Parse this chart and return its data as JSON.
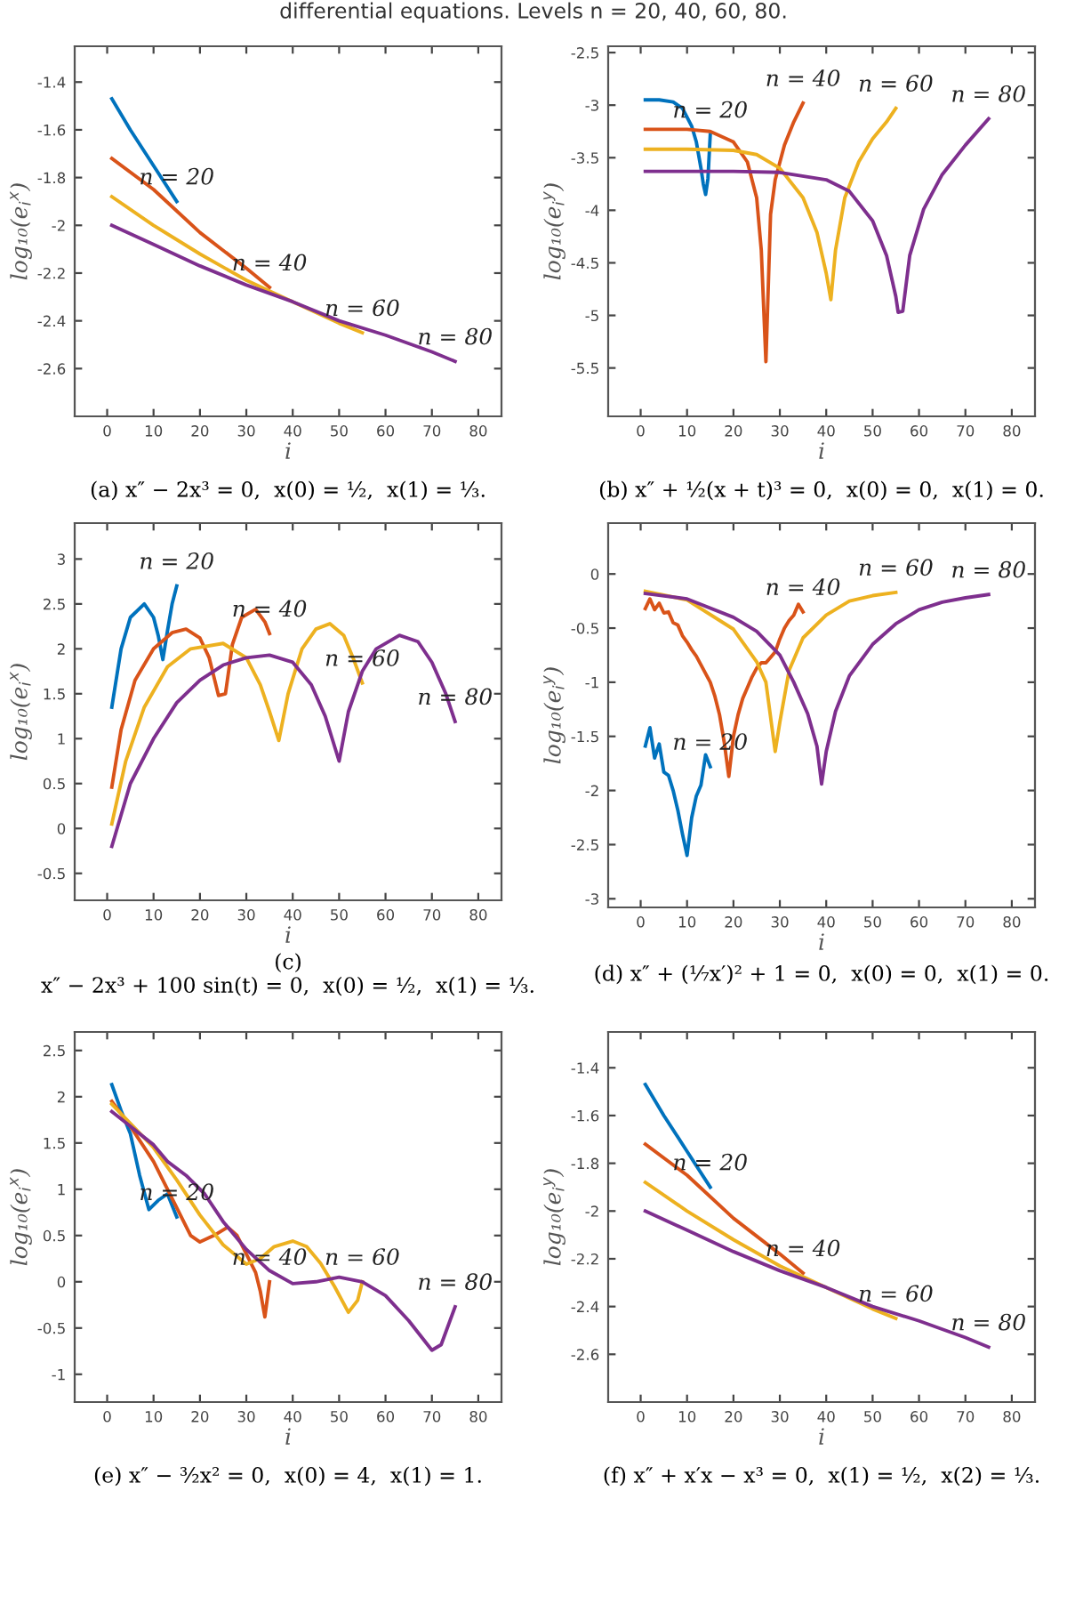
{
  "chart_data": [
    {
      "type": "line",
      "title": "differential equations. Levels n = 20, 40, 60, 80.",
      "xlabel": "i",
      "ylabel": "log₁₀(e$_{i}$$^{x}$)",
      "xlim": [
        -7,
        85
      ],
      "ylim": [
        -2.8,
        -1.25
      ],
      "xticks": [
        0,
        10,
        20,
        30,
        40,
        50,
        60,
        70,
        80
      ],
      "yticks": [
        -2.6,
        -2.4,
        -2.2,
        -2,
        -1.8,
        -1.6,
        -1.4
      ],
      "series": [
        {
          "name": "n = 20",
          "color": "#0072bd",
          "x": [
            1,
            5,
            10,
            15
          ],
          "values": [
            -1.47,
            -1.6,
            -1.75,
            -1.9
          ]
        },
        {
          "name": "n = 40",
          "color": "#d95319",
          "x": [
            1,
            10,
            20,
            30,
            35
          ],
          "values": [
            -1.72,
            -1.85,
            -2.03,
            -2.18,
            -2.26
          ]
        },
        {
          "name": "n = 60",
          "color": "#edb120",
          "x": [
            1,
            10,
            20,
            30,
            40,
            50,
            55
          ],
          "values": [
            -1.88,
            -2.0,
            -2.12,
            -2.23,
            -2.32,
            -2.41,
            -2.45
          ]
        },
        {
          "name": "n = 80",
          "color": "#7e2f8e",
          "x": [
            1,
            10,
            20,
            30,
            40,
            50,
            60,
            70,
            75
          ],
          "values": [
            -2.0,
            -2.08,
            -2.17,
            -2.25,
            -2.32,
            -2.4,
            -2.46,
            -2.53,
            -2.57
          ]
        }
      ],
      "annotations": [
        "(a) x″ − 2x³ = 0,  x(0) = ½,  x(1) = ⅓."
      ]
    },
    {
      "type": "line",
      "xlabel": "i",
      "ylabel": "log₁₀(e$_{i}$$^{y}$)",
      "xlim": [
        -7,
        85
      ],
      "ylim": [
        -5.96,
        -2.44
      ],
      "xticks": [
        0,
        10,
        20,
        30,
        40,
        50,
        60,
        70,
        80
      ],
      "yticks": [
        -5.5,
        -5,
        -4.5,
        -4,
        -3.5,
        -3,
        -2.5
      ],
      "series": [
        {
          "name": "n = 20",
          "color": "#0072bd",
          "x": [
            1,
            4,
            7,
            9,
            11,
            12,
            13,
            13.5,
            14,
            14.5,
            15
          ],
          "values": [
            -2.95,
            -2.95,
            -2.97,
            -3.03,
            -3.2,
            -3.35,
            -3.6,
            -3.75,
            -3.85,
            -3.7,
            -3.28
          ]
        },
        {
          "name": "n = 40",
          "color": "#d95319",
          "x": [
            1,
            10,
            15,
            20,
            23,
            25,
            26,
            27,
            28,
            29,
            31,
            33,
            35
          ],
          "values": [
            -3.23,
            -3.23,
            -3.25,
            -3.35,
            -3.54,
            -3.88,
            -4.38,
            -5.44,
            -4.04,
            -3.71,
            -3.38,
            -3.16,
            -2.98
          ]
        },
        {
          "name": "n = 60",
          "color": "#edb120",
          "x": [
            1,
            10,
            20,
            25,
            30,
            35,
            38,
            40,
            41,
            42,
            44,
            47,
            50,
            53,
            55
          ],
          "values": [
            -3.42,
            -3.42,
            -3.43,
            -3.47,
            -3.6,
            -3.88,
            -4.21,
            -4.6,
            -4.85,
            -4.38,
            -3.88,
            -3.54,
            -3.32,
            -3.16,
            -3.03
          ]
        },
        {
          "name": "n = 80",
          "color": "#7e2f8e",
          "x": [
            1,
            20,
            30,
            40,
            45,
            50,
            53,
            55,
            55.5,
            56.5,
            58,
            61,
            65,
            70,
            75
          ],
          "values": [
            -3.63,
            -3.63,
            -3.64,
            -3.71,
            -3.82,
            -4.1,
            -4.43,
            -4.82,
            -4.97,
            -4.96,
            -4.43,
            -3.99,
            -3.66,
            -3.38,
            -3.13
          ]
        }
      ],
      "annotations": [
        "(b) x″ + ½(x + t)³ = 0,  x(0) = 0,  x(1) = 0."
      ]
    },
    {
      "type": "line",
      "xlabel": "i",
      "ylabel": "log₁₀(e$_{i}$$^{x}$)",
      "xlim": [
        -7,
        85
      ],
      "ylim": [
        -0.8,
        3.4
      ],
      "xticks": [
        0,
        10,
        20,
        30,
        40,
        50,
        60,
        70,
        80
      ],
      "yticks": [
        -0.5,
        0,
        0.5,
        1,
        1.5,
        2,
        2.5,
        3
      ],
      "series": [
        {
          "name": "n = 20",
          "color": "#0072bd",
          "x": [
            1,
            3,
            5,
            8,
            10,
            11,
            12,
            13,
            14,
            15
          ],
          "values": [
            1.35,
            2.0,
            2.35,
            2.5,
            2.35,
            2.15,
            1.88,
            2.2,
            2.5,
            2.7
          ]
        },
        {
          "name": "n = 40",
          "color": "#d95319",
          "x": [
            1,
            3,
            6,
            10,
            14,
            17,
            20,
            22,
            24,
            25.5,
            27,
            29,
            32,
            34,
            35
          ],
          "values": [
            0.46,
            1.1,
            1.65,
            2.0,
            2.18,
            2.22,
            2.12,
            1.9,
            1.48,
            1.5,
            2.05,
            2.35,
            2.44,
            2.3,
            2.17
          ]
        },
        {
          "name": "n = 60",
          "color": "#edb120",
          "x": [
            1,
            4,
            8,
            13,
            18,
            25,
            30,
            33,
            35,
            37,
            39,
            42,
            45,
            48,
            51,
            53,
            55
          ],
          "values": [
            0.05,
            0.75,
            1.35,
            1.8,
            2.0,
            2.06,
            1.9,
            1.6,
            1.3,
            0.98,
            1.5,
            2.0,
            2.22,
            2.28,
            2.15,
            1.9,
            1.62
          ]
        },
        {
          "name": "n = 80",
          "color": "#7e2f8e",
          "x": [
            1,
            5,
            10,
            15,
            20,
            25,
            30,
            35,
            40,
            44,
            47,
            50,
            52,
            55,
            58,
            63,
            67,
            70,
            73,
            75
          ],
          "values": [
            -0.2,
            0.5,
            1.0,
            1.4,
            1.65,
            1.82,
            1.9,
            1.93,
            1.85,
            1.6,
            1.25,
            0.75,
            1.3,
            1.75,
            2.0,
            2.15,
            2.08,
            1.85,
            1.5,
            1.19
          ]
        }
      ],
      "annotations": [
        "(c)\nx″ − 2x³ + 100 sin(t) = 0,  x(0) = ½,  x(1) = ⅓."
      ]
    },
    {
      "type": "line",
      "xlabel": "i",
      "ylabel": "log₁₀(e$_{i}$$^{y}$)",
      "xlim": [
        -7,
        85
      ],
      "ylim": [
        -3.08,
        0.47
      ],
      "xticks": [
        0,
        10,
        20,
        30,
        40,
        50,
        60,
        70,
        80
      ],
      "yticks": [
        -3,
        -2.5,
        -2,
        -1.5,
        -1,
        -0.5,
        0
      ],
      "series": [
        {
          "name": "n = 20",
          "color": "#0072bd",
          "x": [
            1,
            2,
            3,
            4,
            5,
            6,
            7,
            8,
            9,
            10,
            11,
            12,
            13,
            14,
            15
          ],
          "values": [
            -1.59,
            -1.42,
            -1.7,
            -1.57,
            -1.83,
            -1.86,
            -2.0,
            -2.18,
            -2.4,
            -2.6,
            -2.25,
            -2.05,
            -1.95,
            -1.67,
            -1.78
          ]
        },
        {
          "name": "n = 40",
          "color": "#d95319",
          "x": [
            1,
            2,
            3,
            4,
            5,
            6,
            7,
            8,
            9,
            10,
            11,
            12,
            13,
            14,
            15,
            16,
            17,
            18,
            19,
            20,
            21,
            22,
            23,
            24,
            25,
            26,
            27,
            28,
            29,
            30,
            31,
            32,
            33,
            34,
            35
          ],
          "values": [
            -0.32,
            -0.23,
            -0.33,
            -0.27,
            -0.36,
            -0.35,
            -0.45,
            -0.47,
            -0.57,
            -0.63,
            -0.7,
            -0.76,
            -0.84,
            -0.92,
            -1.0,
            -1.13,
            -1.3,
            -1.55,
            -1.87,
            -1.5,
            -1.3,
            -1.15,
            -1.05,
            -0.95,
            -0.87,
            -0.82,
            -0.82,
            -0.77,
            -0.72,
            -0.6,
            -0.5,
            -0.43,
            -0.38,
            -0.28,
            -0.35
          ]
        },
        {
          "name": "n = 60",
          "color": "#edb120",
          "x": [
            1,
            10,
            20,
            25,
            27,
            29,
            30,
            32,
            35,
            40,
            45,
            50,
            55
          ],
          "values": [
            -0.16,
            -0.24,
            -0.51,
            -0.81,
            -1.0,
            -1.64,
            -1.37,
            -0.89,
            -0.59,
            -0.38,
            -0.25,
            -0.2,
            -0.17
          ]
        },
        {
          "name": "n = 80",
          "color": "#7e2f8e",
          "x": [
            1,
            10,
            20,
            25,
            30,
            33,
            36,
            38,
            39,
            40,
            42,
            45,
            50,
            55,
            60,
            65,
            70,
            75
          ],
          "values": [
            -0.18,
            -0.23,
            -0.4,
            -0.53,
            -0.75,
            -1.0,
            -1.29,
            -1.59,
            -1.94,
            -1.64,
            -1.27,
            -0.94,
            -0.65,
            -0.46,
            -0.33,
            -0.26,
            -0.22,
            -0.19
          ]
        }
      ],
      "annotations": [
        "(d) x″ + (¹⁄₇x′)² + 1 = 0,  x(0) = 0,  x(1) = 0."
      ]
    },
    {
      "type": "line",
      "xlabel": "i",
      "ylabel": "log₁₀(e$_{i}$$^{x}$)",
      "xlim": [
        -7,
        85
      ],
      "ylim": [
        -1.3,
        2.7
      ],
      "xticks": [
        0,
        10,
        20,
        30,
        40,
        50,
        60,
        70,
        80
      ],
      "yticks": [
        -1,
        -0.5,
        0,
        0.5,
        1,
        1.5,
        2,
        2.5
      ],
      "series": [
        {
          "name": "n = 20",
          "color": "#0072bd",
          "x": [
            1,
            3,
            5,
            7,
            9,
            11,
            13,
            15
          ],
          "values": [
            2.13,
            1.85,
            1.6,
            1.15,
            0.78,
            0.88,
            0.95,
            0.7
          ]
        },
        {
          "name": "n = 40",
          "color": "#d95319",
          "x": [
            1,
            5,
            10,
            15,
            18,
            20,
            23,
            26,
            28,
            30,
            32,
            33,
            34,
            35
          ],
          "values": [
            1.95,
            1.68,
            1.3,
            0.8,
            0.5,
            0.43,
            0.5,
            0.59,
            0.5,
            0.3,
            0.1,
            -0.1,
            -0.38,
            0
          ]
        },
        {
          "name": "n = 60",
          "color": "#edb120",
          "x": [
            1,
            10,
            15,
            20,
            25,
            30,
            33,
            36,
            40,
            43,
            46,
            49,
            52,
            54,
            55
          ],
          "values": [
            1.92,
            1.45,
            1.1,
            0.72,
            0.4,
            0.19,
            0.25,
            0.38,
            0.44,
            0.38,
            0.2,
            -0.05,
            -0.33,
            -0.2,
            0
          ]
        },
        {
          "name": "n = 80",
          "color": "#7e2f8e",
          "x": [
            1,
            5,
            10,
            13,
            17,
            21,
            25,
            30,
            35,
            40,
            45,
            50,
            55,
            60,
            65,
            70,
            72,
            75
          ],
          "values": [
            1.84,
            1.68,
            1.48,
            1.3,
            1.15,
            0.95,
            0.65,
            0.35,
            0.12,
            -0.02,
            0,
            0.05,
            0,
            -0.15,
            -0.42,
            -0.74,
            -0.68,
            -0.27
          ]
        }
      ],
      "annotations": [
        "(e) x″ − ³⁄₂x² = 0,  x(0) = 4,  x(1) = 1."
      ]
    },
    {
      "type": "line",
      "xlabel": "i",
      "ylabel": "log₁₀(e$_{i}$$^{y}$)",
      "xlim": [
        -7,
        85
      ],
      "ylim": [
        -2.8,
        -1.25
      ],
      "xticks": [
        0,
        10,
        20,
        30,
        40,
        50,
        60,
        70,
        80
      ],
      "yticks": [
        -2.6,
        -2.4,
        -2.2,
        -2,
        -1.8,
        -1.6,
        -1.4
      ],
      "series": [
        {
          "name": "n = 20",
          "color": "#0072bd",
          "x": [
            1,
            5,
            10,
            15
          ],
          "values": [
            -1.47,
            -1.6,
            -1.75,
            -1.9
          ]
        },
        {
          "name": "n = 40",
          "color": "#d95319",
          "x": [
            1,
            10,
            20,
            30,
            35
          ],
          "values": [
            -1.72,
            -1.85,
            -2.03,
            -2.18,
            -2.26
          ]
        },
        {
          "name": "n = 60",
          "color": "#edb120",
          "x": [
            1,
            10,
            20,
            30,
            40,
            50,
            55
          ],
          "values": [
            -1.88,
            -2.0,
            -2.12,
            -2.23,
            -2.32,
            -2.41,
            -2.45
          ]
        },
        {
          "name": "n = 80",
          "color": "#7e2f8e",
          "x": [
            1,
            10,
            20,
            30,
            40,
            50,
            60,
            70,
            75
          ],
          "values": [
            -2.0,
            -2.08,
            -2.17,
            -2.25,
            -2.32,
            -2.4,
            -2.46,
            -2.53,
            -2.57
          ]
        }
      ],
      "annotations": [
        "(f) x″ + x′x − x³ = 0,  x(1) = ½,  x(2) = ⅓."
      ]
    }
  ]
}
